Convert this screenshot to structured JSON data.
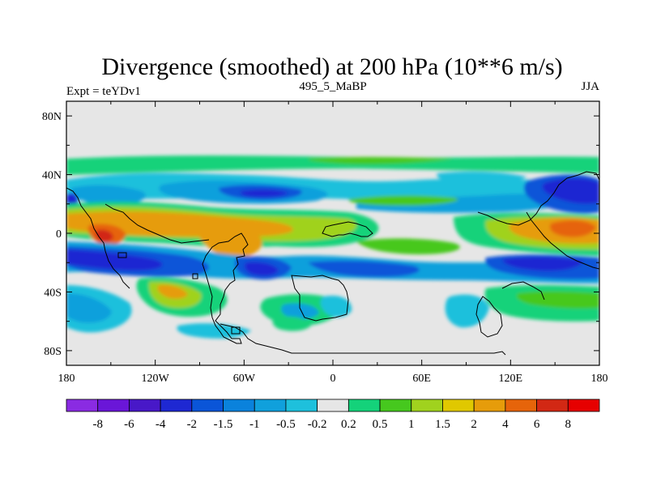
{
  "chart_data": {
    "type": "heatmap",
    "title": "Divergence (smoothed) at 200 hPa (10**6 m/s)",
    "left_string": "Expt = teYDv1",
    "center_string": "495_5_MaBP",
    "right_string": "JJA",
    "x_ticks": [
      {
        "value": -180,
        "label": "180"
      },
      {
        "value": -120,
        "label": "120W"
      },
      {
        "value": -60,
        "label": "60W"
      },
      {
        "value": 0,
        "label": "0"
      },
      {
        "value": 60,
        "label": "60E"
      },
      {
        "value": 120,
        "label": "120E"
      },
      {
        "value": 180,
        "label": "180"
      }
    ],
    "y_ticks": [
      {
        "value": 80,
        "label": "80N"
      },
      {
        "value": 40,
        "label": "40N"
      },
      {
        "value": 0,
        "label": "0"
      },
      {
        "value": -40,
        "label": "40S"
      },
      {
        "value": -80,
        "label": "80S"
      }
    ],
    "xlim": [
      -180,
      180
    ],
    "ylim": [
      -90,
      90
    ],
    "contour_levels": [
      "-8",
      "-6",
      "-4",
      "-2",
      "-1.5",
      "-1",
      "-0.5",
      "-0.2",
      "0.2",
      "0.5",
      "1",
      "1.5",
      "2",
      "4",
      "6",
      "8"
    ],
    "colors": [
      "#8a2be2",
      "#6a16d8",
      "#4818c8",
      "#1e28d2",
      "#0a55d8",
      "#0a82dc",
      "#10a0dc",
      "#1ec0dc",
      "#e6e6e6",
      "#14d27a",
      "#46c81e",
      "#a0d21e",
      "#e0c800",
      "#e69c0a",
      "#e6640a",
      "#d22814",
      "#e60000"
    ],
    "background": "#e6e6e6"
  }
}
